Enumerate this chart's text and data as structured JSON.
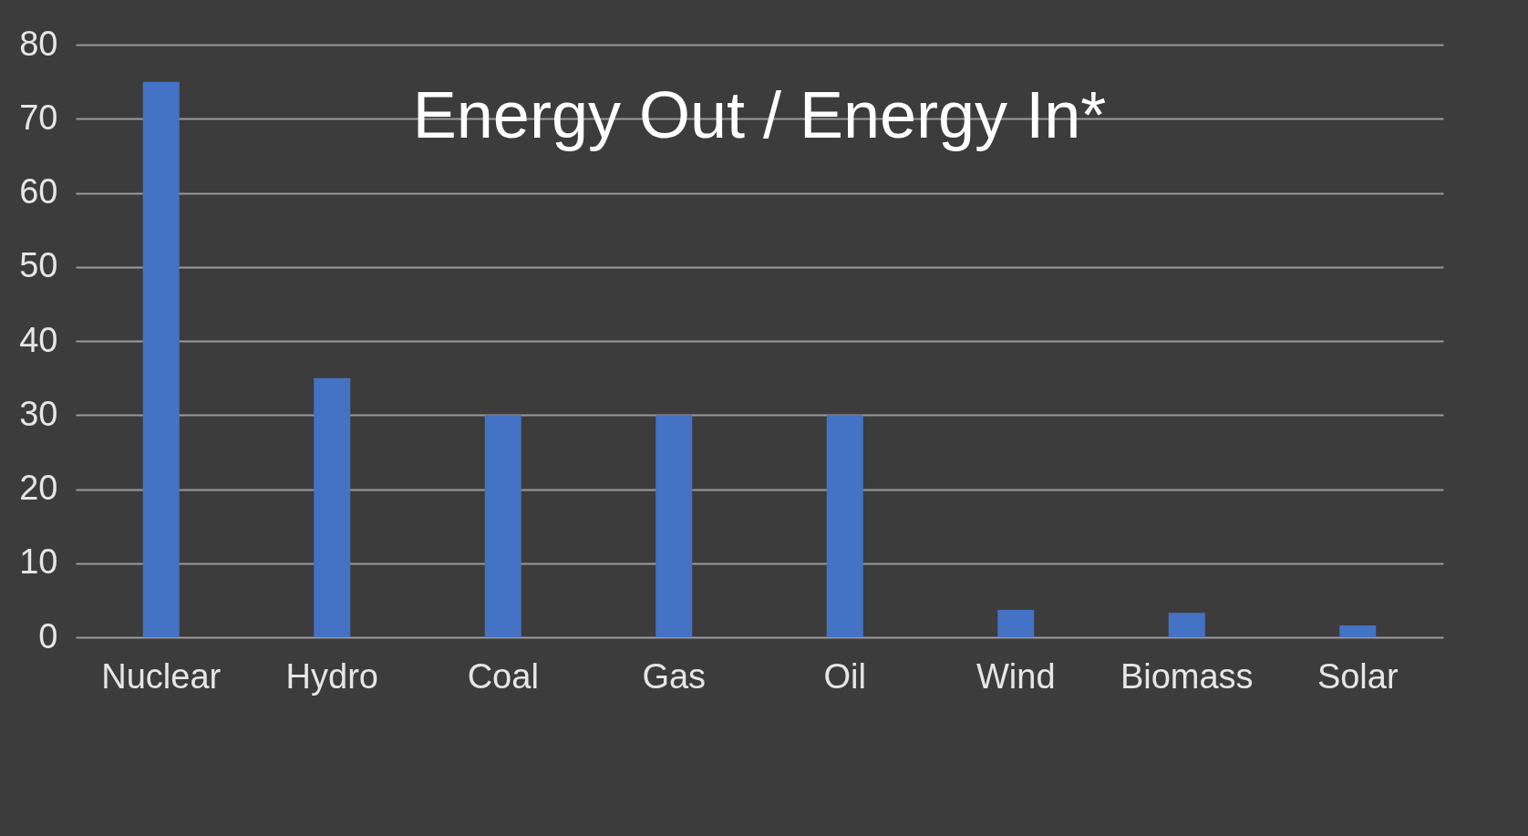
{
  "chart_data": {
    "type": "bar",
    "title": "Energy Out / Energy In*",
    "categories": [
      "Nuclear",
      "Hydro",
      "Coal",
      "Gas",
      "Oil",
      "Wind",
      "Biomass",
      "Solar"
    ],
    "values": [
      75,
      35,
      30,
      30,
      30,
      3.7,
      3.3,
      1.6
    ],
    "color": "#4472c4",
    "ylim": [
      0,
      80
    ],
    "yticks": [
      0,
      10,
      20,
      30,
      40,
      50,
      60,
      70,
      80
    ],
    "grid": "y"
  }
}
